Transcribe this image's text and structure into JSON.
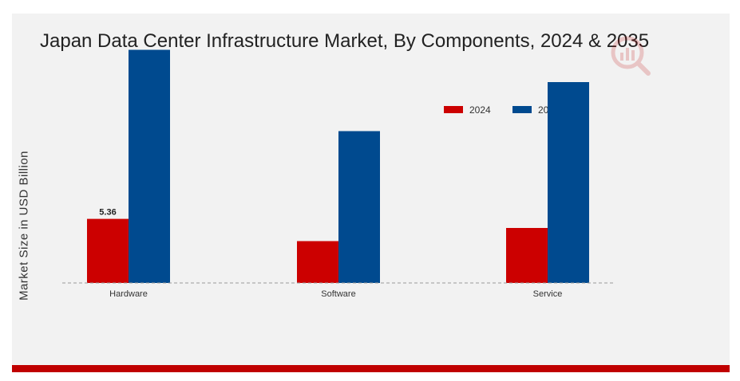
{
  "colors": {
    "series_2024": "#cc0000",
    "series_2035": "#004a8f",
    "background": "#f2f2f2",
    "accent_bar": "#c00000"
  },
  "chart_data": {
    "type": "bar",
    "title": "Japan Data Center Infrastructure Market, By Components, 2024 & 2035",
    "xlabel": "",
    "ylabel": "Market Size in USD Billion",
    "categories": [
      "Hardware",
      "Software",
      "Service"
    ],
    "series": [
      {
        "name": "2024",
        "values": [
          5.36,
          3.5,
          4.6
        ],
        "color": "#cc0000"
      },
      {
        "name": "2035",
        "values": [
          19.5,
          12.7,
          16.8
        ],
        "color": "#004a8f"
      }
    ],
    "data_labels": [
      {
        "series": "2024",
        "category": "Hardware",
        "text": "5.36"
      }
    ],
    "ylim": [
      0,
      20
    ],
    "grid": false,
    "legend": "top-right"
  }
}
